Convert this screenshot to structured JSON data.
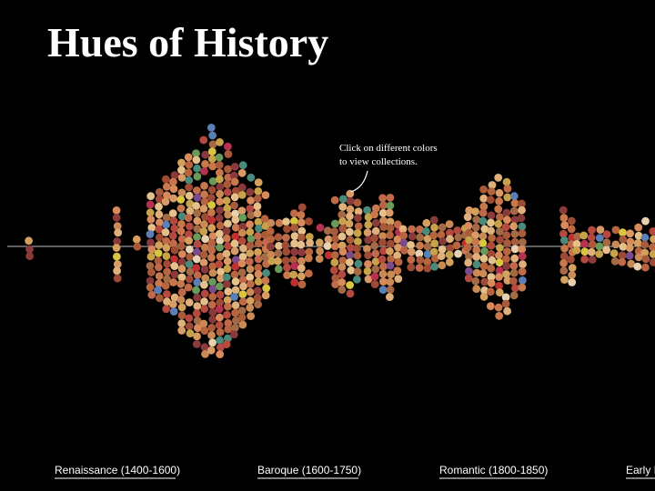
{
  "header": {
    "title": "Hues of History"
  },
  "annotation": {
    "lines": [
      "Click on different colors",
      "to view collections."
    ]
  },
  "nav": {
    "links": [
      "Renaissance (1400-1600)",
      "Baroque (1600-1750)",
      "Romantic (1800-1850)",
      "Early I"
    ]
  }
}
